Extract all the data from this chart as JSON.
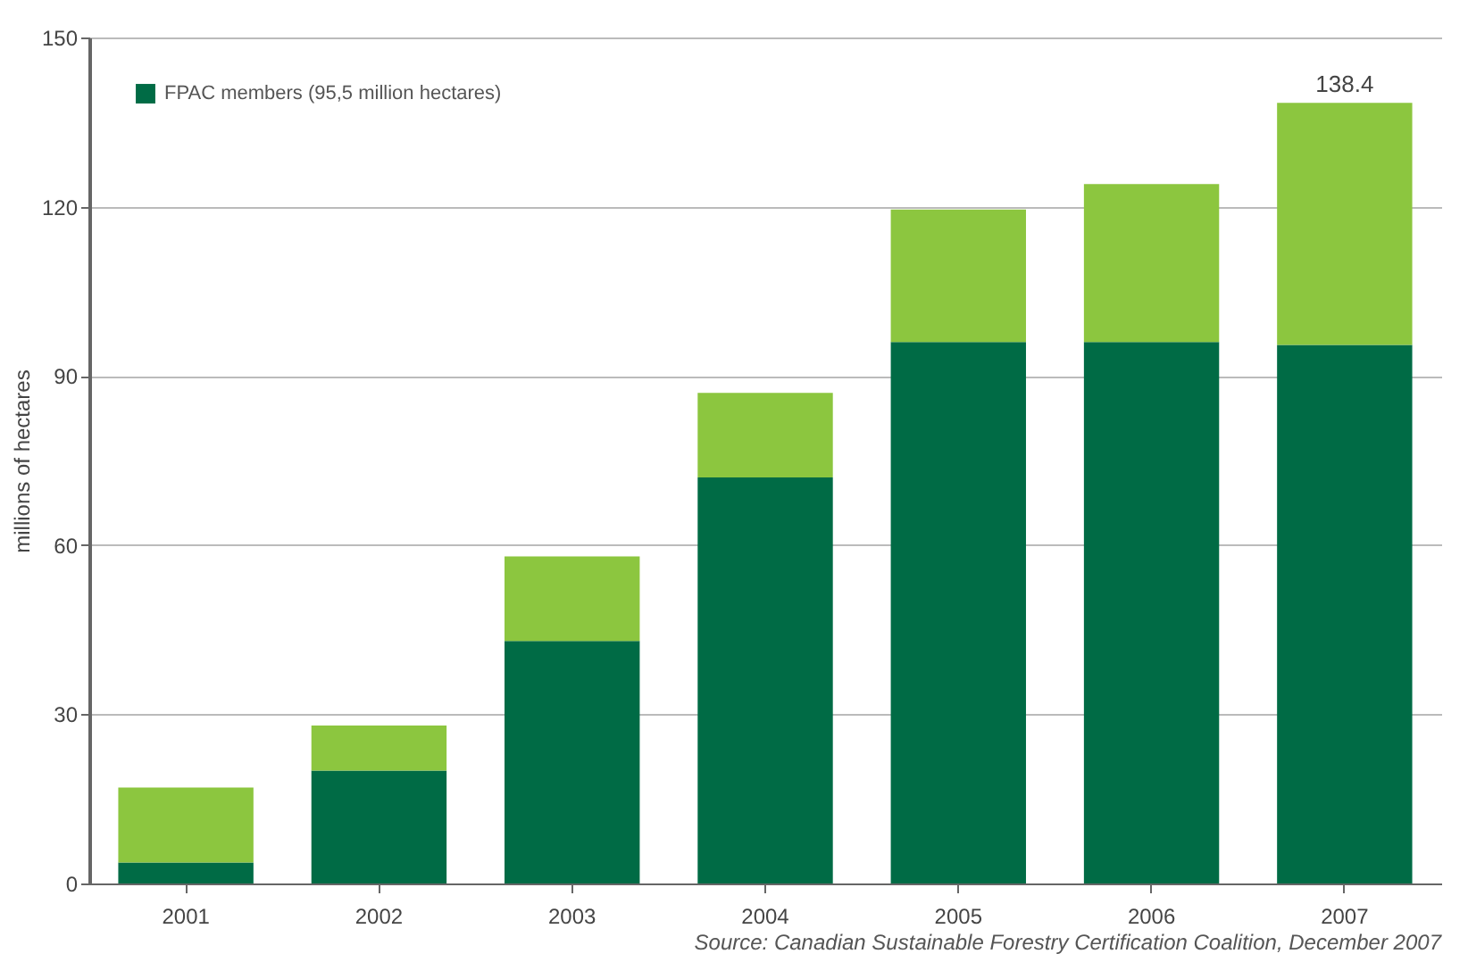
{
  "chart_data": {
    "type": "bar",
    "stacked": true,
    "ylabel": "millions of hectares",
    "categories": [
      "2001",
      "2002",
      "2003",
      "2004",
      "2005",
      "2006",
      "2007"
    ],
    "series": [
      {
        "name": "FPAC members (95,5 million hectares)",
        "color": "#006b45",
        "values": [
          3.7,
          20,
          43,
          72,
          96,
          96,
          95.5
        ]
      },
      {
        "color": "#8cc63f",
        "values": [
          13.3,
          8,
          15,
          15,
          23.5,
          28,
          42.9
        ]
      }
    ],
    "totals": [
      null,
      null,
      null,
      null,
      null,
      null,
      "138.4"
    ],
    "ylim": [
      0,
      150
    ],
    "yticks": [
      0,
      30,
      60,
      90,
      120,
      150
    ],
    "grid": "y",
    "legend": "top left",
    "annotations": [
      "Source: Canadian Sustainable Forestry Certification Coalition, December 2007"
    ]
  }
}
